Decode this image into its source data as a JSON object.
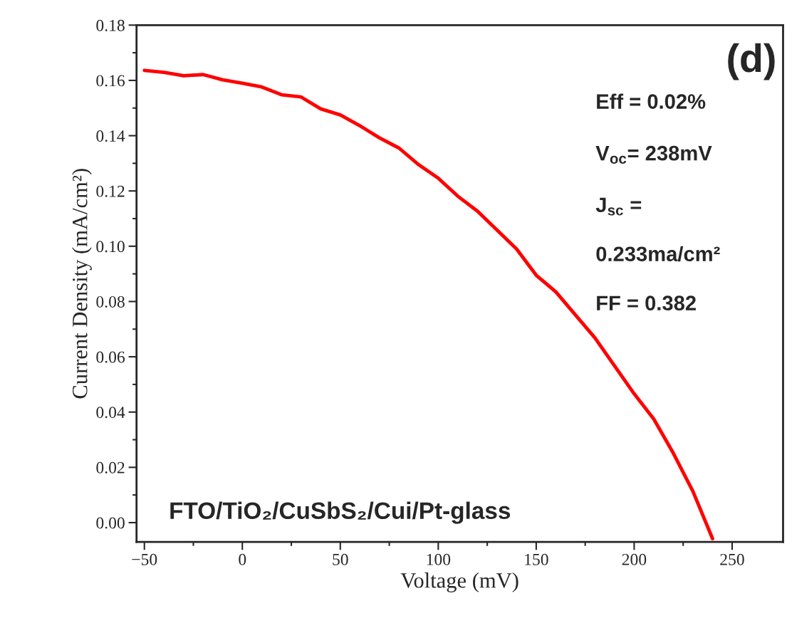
{
  "chart_data": {
    "type": "line",
    "xlabel": "Voltage (mV)",
    "ylabel": "Current Density (mA/cm²)",
    "x": [
      -50,
      -40,
      -30,
      -20,
      -10,
      0,
      10,
      20,
      30,
      40,
      50,
      60,
      70,
      80,
      90,
      100,
      110,
      120,
      140,
      150,
      160,
      180,
      200,
      210,
      220,
      230,
      240
    ],
    "series": [
      {
        "color": "#ff0000",
        "values": [
          0.1636,
          0.1629,
          0.1617,
          0.1621,
          0.1602,
          0.159,
          0.1576,
          0.1548,
          0.154,
          0.1497,
          0.1475,
          0.1436,
          0.1392,
          0.1355,
          0.1295,
          0.1246,
          0.1181,
          0.1127,
          0.099,
          0.0895,
          0.0835,
          0.0668,
          0.0466,
          0.0375,
          0.0251,
          0.0113,
          -0.0058
        ]
      }
    ],
    "xlim": [
      -54,
      276
    ],
    "ylim": [
      -0.007,
      0.18
    ],
    "xticks": [
      -50,
      0,
      50,
      100,
      150,
      200,
      250
    ],
    "yticks": [
      {
        "value": 0,
        "label": "0.00"
      },
      {
        "value": 0.02,
        "label": "0.02"
      },
      {
        "value": 0.04,
        "label": "0.04"
      },
      {
        "value": 0.06,
        "label": "0.06"
      },
      {
        "value": 0.08,
        "label": "0.08"
      },
      {
        "value": 0.1,
        "label": "0.10"
      },
      {
        "value": 0.12,
        "label": "0.12"
      },
      {
        "value": 0.14,
        "label": "0.14"
      },
      {
        "value": 0.16,
        "label": "0.16"
      },
      {
        "value": 0.18,
        "label": "0.18"
      }
    ],
    "annotations": [
      "(d)",
      "Eff = 0.02%",
      "V$_{oc}$= 238mV",
      "J$_{sc}$ =",
      "0.233ma/cm²",
      "FF = 0.382",
      "FTO/TiO₂/CuSbS₂/Cui/Pt-glass"
    ],
    "grid": false,
    "marker": "none",
    "line_style": "solid"
  }
}
